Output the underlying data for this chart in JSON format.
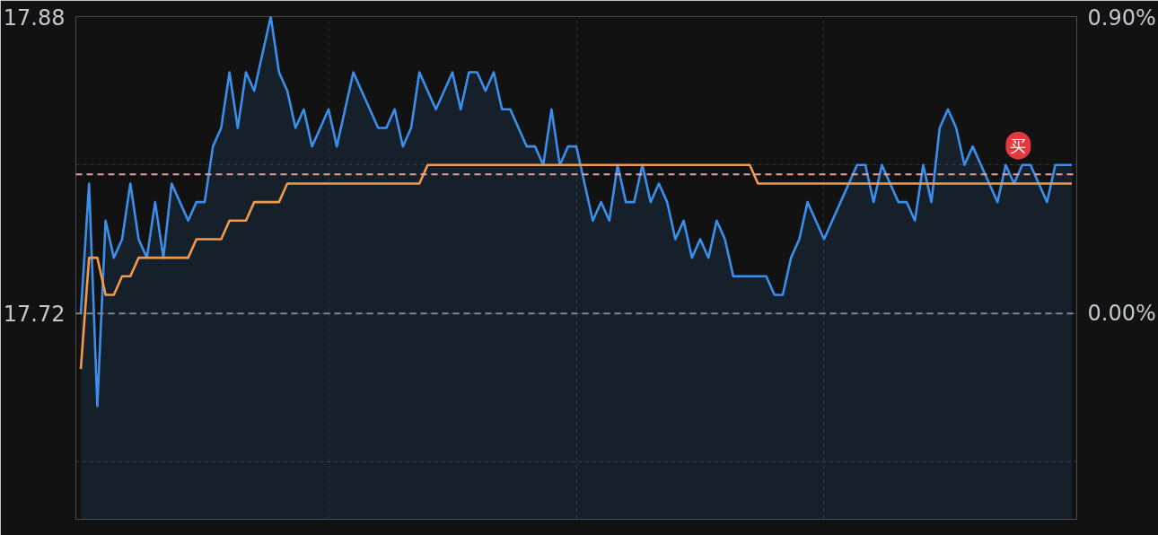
{
  "chart_data": {
    "type": "area",
    "categories": [
      null,
      null,
      null,
      null,
      null,
      null,
      null,
      null,
      null,
      null,
      null,
      null,
      null,
      null,
      null,
      null,
      null,
      null,
      null,
      null,
      null,
      null,
      null,
      null,
      null,
      null,
      null,
      null,
      null,
      null,
      null,
      null,
      null,
      null,
      null,
      null,
      null,
      null,
      null,
      null,
      null,
      null,
      null,
      null,
      null,
      null,
      null,
      null,
      null,
      null,
      null,
      null,
      null,
      null,
      null,
      null,
      null,
      null,
      null,
      null,
      null,
      null,
      null,
      null,
      null,
      null,
      null,
      null,
      null,
      null,
      null,
      null,
      null,
      null,
      null,
      null,
      null,
      null,
      null,
      null,
      null,
      null,
      null,
      null,
      null,
      null,
      null,
      null,
      null,
      null,
      null,
      null,
      null,
      null,
      null,
      null,
      null,
      null,
      null,
      null,
      null,
      null,
      null,
      null,
      null,
      null,
      null,
      null,
      null,
      null,
      null,
      null,
      null,
      null,
      null,
      null,
      null,
      null,
      null,
      null,
      null
    ],
    "series": [
      {
        "color": "#3b8fea",
        "values": [
          17.72,
          17.79,
          17.67,
          17.77,
          17.75,
          17.76,
          17.79,
          17.76,
          17.75,
          17.78,
          17.75,
          17.79,
          17.78,
          17.77,
          17.78,
          17.78,
          17.81,
          17.82,
          17.85,
          17.82,
          17.85,
          17.84,
          17.86,
          17.88,
          17.85,
          17.84,
          17.82,
          17.83,
          17.81,
          17.82,
          17.83,
          17.81,
          17.83,
          17.85,
          17.84,
          17.83,
          17.82,
          17.82,
          17.83,
          17.81,
          17.82,
          17.85,
          17.84,
          17.83,
          17.84,
          17.85,
          17.83,
          17.85,
          17.85,
          17.84,
          17.85,
          17.83,
          17.83,
          17.82,
          17.81,
          17.81,
          17.8,
          17.83,
          17.8,
          17.81,
          17.81,
          17.79,
          17.77,
          17.78,
          17.77,
          17.8,
          17.78,
          17.78,
          17.8,
          17.78,
          17.79,
          17.78,
          17.76,
          17.77,
          17.75,
          17.76,
          17.75,
          17.77,
          17.76,
          17.74,
          17.74,
          17.74,
          17.74,
          17.74,
          17.73,
          17.73,
          17.75,
          17.76,
          17.78,
          17.77,
          17.76,
          17.77,
          17.78,
          17.79,
          17.8,
          17.8,
          17.78,
          17.8,
          17.79,
          17.78,
          17.78,
          17.77,
          17.8,
          17.78,
          17.82,
          17.83,
          17.82,
          17.8,
          17.81,
          17.8,
          17.79,
          17.78,
          17.8,
          17.79,
          17.8,
          17.8,
          17.79,
          17.78,
          17.8,
          17.8,
          17.8
        ]
      },
      {
        "type": "line",
        "color": "#f2994a",
        "values": [
          17.69,
          17.75,
          17.75,
          17.73,
          17.73,
          17.74,
          17.74,
          17.75,
          17.75,
          17.75,
          17.75,
          17.75,
          17.75,
          17.75,
          17.76,
          17.76,
          17.76,
          17.76,
          17.77,
          17.77,
          17.77,
          17.78,
          17.78,
          17.78,
          17.78,
          17.79,
          17.79,
          17.79,
          17.79,
          17.79,
          17.79,
          17.79,
          17.79,
          17.79,
          17.79,
          17.79,
          17.79,
          17.79,
          17.79,
          17.79,
          17.79,
          17.79,
          17.8,
          17.8,
          17.8,
          17.8,
          17.8,
          17.8,
          17.8,
          17.8,
          17.8,
          17.8,
          17.8,
          17.8,
          17.8,
          17.8,
          17.8,
          17.8,
          17.8,
          17.8,
          17.8,
          17.8,
          17.8,
          17.8,
          17.8,
          17.8,
          17.8,
          17.8,
          17.8,
          17.8,
          17.8,
          17.8,
          17.8,
          17.8,
          17.8,
          17.8,
          17.8,
          17.8,
          17.8,
          17.8,
          17.8,
          17.8,
          17.79,
          17.79,
          17.79,
          17.79,
          17.79,
          17.79,
          17.79,
          17.79,
          17.79,
          17.79,
          17.79,
          17.79,
          17.79,
          17.79,
          17.79,
          17.79,
          17.79,
          17.79,
          17.79,
          17.79,
          17.79,
          17.79,
          17.79,
          17.79,
          17.79,
          17.79,
          17.79,
          17.79,
          17.79,
          17.79,
          17.79,
          17.79,
          17.79,
          17.79,
          17.79,
          17.79,
          17.79,
          17.79,
          17.79
        ]
      }
    ],
    "ylim": [
      17.609,
      17.88
    ],
    "yticks": [
      17.88,
      {
        "value": 17.8,
        "label": null
      },
      17.72,
      {
        "value": 17.64,
        "label": null
      }
    ],
    "y2lim": [
      -0.626,
      0.903
    ],
    "y2ticks": [
      {
        "value": 0.9,
        "label": "0.90%"
      },
      {
        "value": 0,
        "label": "0.00%"
      }
    ],
    "ref_lines": [
      {
        "axis": "y",
        "value": 17.72,
        "color": "#7f8893",
        "line_style": "dashed"
      },
      {
        "axis": "y",
        "value": 17.795,
        "color": "#e6a0a6",
        "line_style": "dashed"
      }
    ],
    "annotations": [
      {
        "text": "买",
        "y": 17.795
      }
    ],
    "grid": true
  }
}
